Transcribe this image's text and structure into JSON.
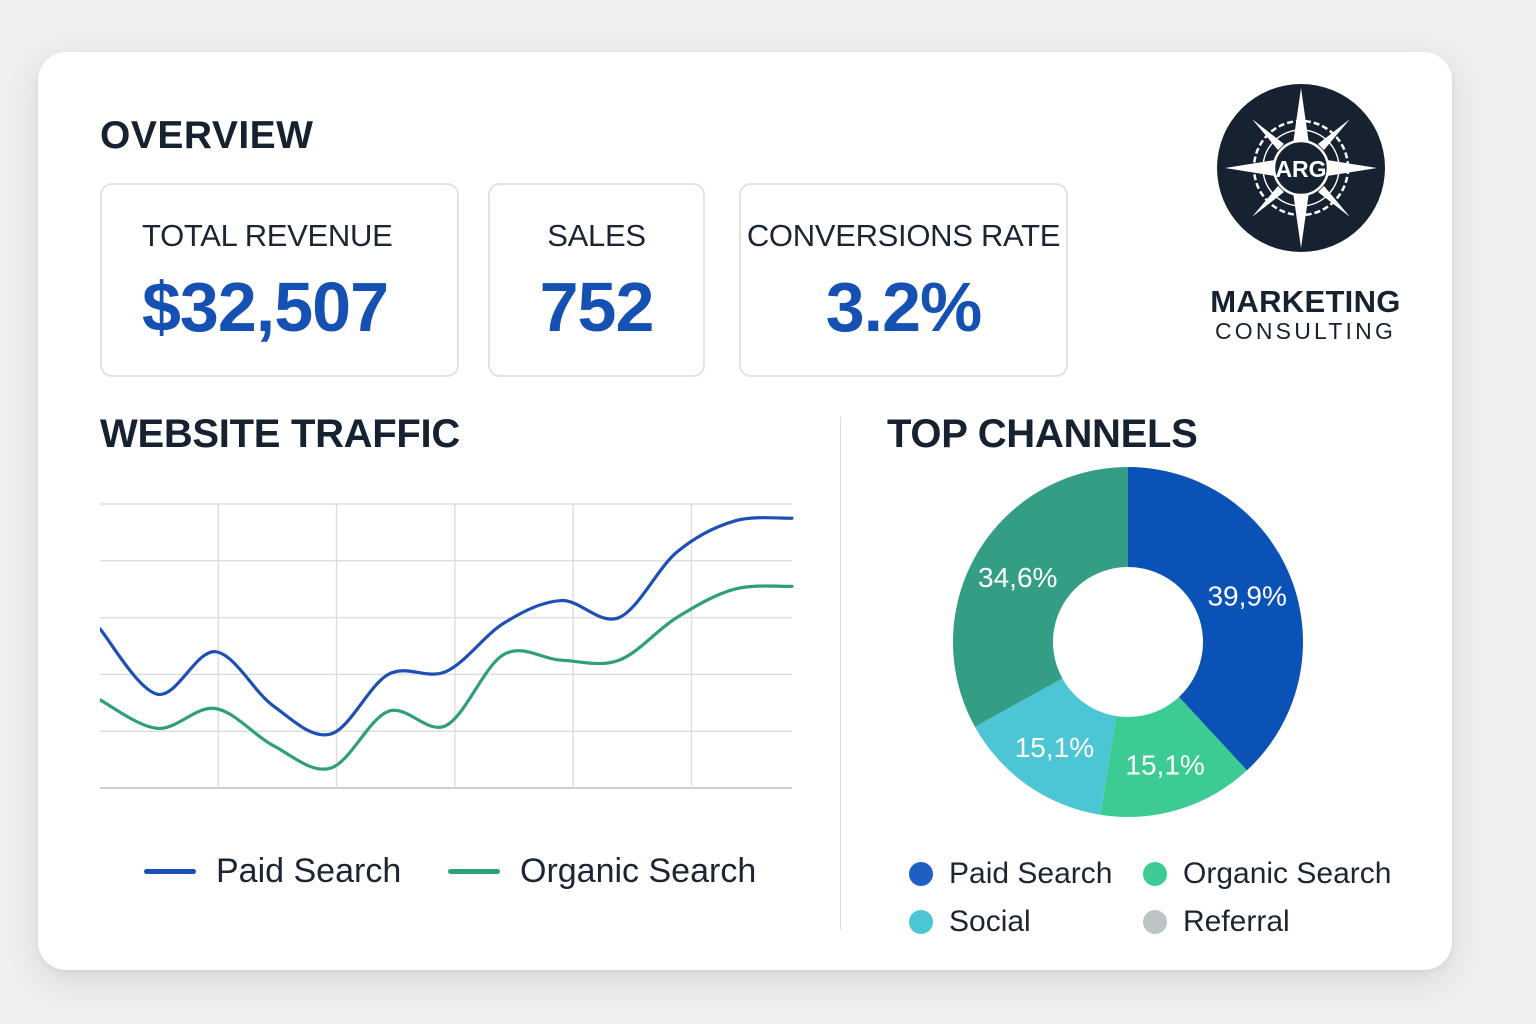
{
  "overview": {
    "title": "OVERVIEW",
    "kpis": [
      {
        "label": "TOTAL REVENUE",
        "value": "$32,507"
      },
      {
        "label": "SALES",
        "value": "752"
      },
      {
        "label": "CONVERSIONS RATE",
        "value": "3.2%"
      }
    ]
  },
  "brand": {
    "logo_text": "ARG",
    "line1": "MARKETING",
    "line2": "CONSULTING",
    "logo_icon": "compass-icon"
  },
  "traffic": {
    "title": "WEBSITE TRAFFIC",
    "legend": [
      {
        "name": "Paid Search",
        "color": "#1e4fb5"
      },
      {
        "name": "Organic Search",
        "color": "#2f9f7a"
      }
    ]
  },
  "channels": {
    "title": "TOP CHANNELS",
    "legend": [
      {
        "name": "Paid Search",
        "color": "#1f5fc4"
      },
      {
        "name": "Organic Search",
        "color": "#3ccc93"
      },
      {
        "name": "Social",
        "color": "#4cc6d4"
      },
      {
        "name": "Referral",
        "color": "#bcc4c6"
      }
    ]
  },
  "chart_data": [
    {
      "type": "line",
      "title": "WEBSITE TRAFFIC",
      "grid": true,
      "x": [
        0,
        1,
        2,
        3,
        4,
        5,
        6,
        7,
        8,
        9,
        10,
        11,
        12
      ],
      "ylim": [
        0,
        100
      ],
      "series": [
        {
          "name": "Paid Search",
          "color": "#1e4fb5",
          "values": [
            56,
            33,
            48,
            29,
            19,
            40,
            41,
            58,
            66,
            60,
            83,
            94,
            95
          ]
        },
        {
          "name": "Organic Search",
          "color": "#2f9f7a",
          "values": [
            31,
            21,
            28,
            15,
            7,
            27,
            22,
            47,
            45,
            45,
            60,
            70,
            71
          ]
        }
      ]
    },
    {
      "type": "pie",
      "title": "TOP CHANNELS",
      "slices": [
        {
          "label": "39,9%",
          "value": 39.9,
          "color": "#0a52b5"
        },
        {
          "label": "15,1%",
          "value": 15.1,
          "color": "#3ccc93"
        },
        {
          "label": "15,1%",
          "value": 15.1,
          "color": "#4cc6d4"
        },
        {
          "label": "34,6%",
          "value": 34.6,
          "color": "#339e85"
        }
      ]
    }
  ]
}
